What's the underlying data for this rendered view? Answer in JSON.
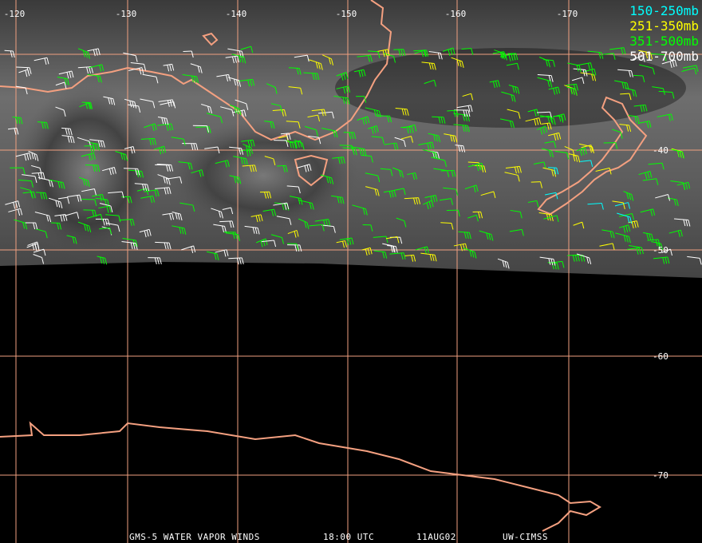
{
  "map": {
    "longitude_labels": [
      -120,
      -130,
      -140,
      -150,
      -160,
      -170
    ],
    "latitude_labels": [
      -40,
      -50,
      -60,
      -70
    ],
    "legend": [
      {
        "label": "150-250mb",
        "color": "#00ffff"
      },
      {
        "label": "251-350mb",
        "color": "#ffff00"
      },
      {
        "label": "351-500mb",
        "color": "#00ff00"
      },
      {
        "label": "501-700mb",
        "color": "#ffffff"
      }
    ],
    "footer": [
      "GMS-5 WATER VAPOR WINDS",
      "18:00 UTC",
      "11AUG02",
      "UW-CIMSS"
    ]
  }
}
